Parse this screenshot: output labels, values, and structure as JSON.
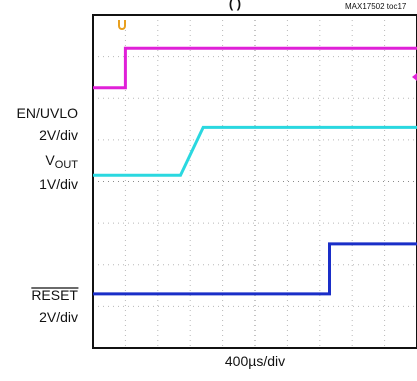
{
  "chart_data": {
    "type": "line",
    "title_fragment": "(                    )",
    "figure_id": "MAX17502 toc17",
    "x_axis_label": "400µs/div",
    "xlim": [
      0,
      10
    ],
    "ylim": [
      0,
      8
    ],
    "grid": true,
    "channel_labels": [
      {
        "name": "EN/UVLO",
        "scale": "2V/div"
      },
      {
        "name": "VOUT",
        "name_main": "V",
        "name_sub": "OUT",
        "scale": "1V/div"
      },
      {
        "name": "RESET",
        "overline": true,
        "scale": "2V/div"
      }
    ],
    "series": [
      {
        "name": "EN/UVLO",
        "color": "#e020d8",
        "x": [
          0,
          1.0,
          1.0,
          10
        ],
        "y": [
          6.25,
          6.25,
          7.2,
          7.2
        ]
      },
      {
        "name": "VOUT",
        "color": "#2ad8e0",
        "x": [
          0,
          2.7,
          3.4,
          10
        ],
        "y": [
          4.15,
          4.15,
          5.3,
          5.3
        ]
      },
      {
        "name": "RESET",
        "color": "#1a2ec8",
        "x": [
          0,
          7.3,
          7.3,
          10
        ],
        "y": [
          1.3,
          1.3,
          2.5,
          2.5
        ]
      }
    ],
    "marker_colors": {
      "trigger": "#e8a020",
      "edge": "#e020d8"
    }
  }
}
